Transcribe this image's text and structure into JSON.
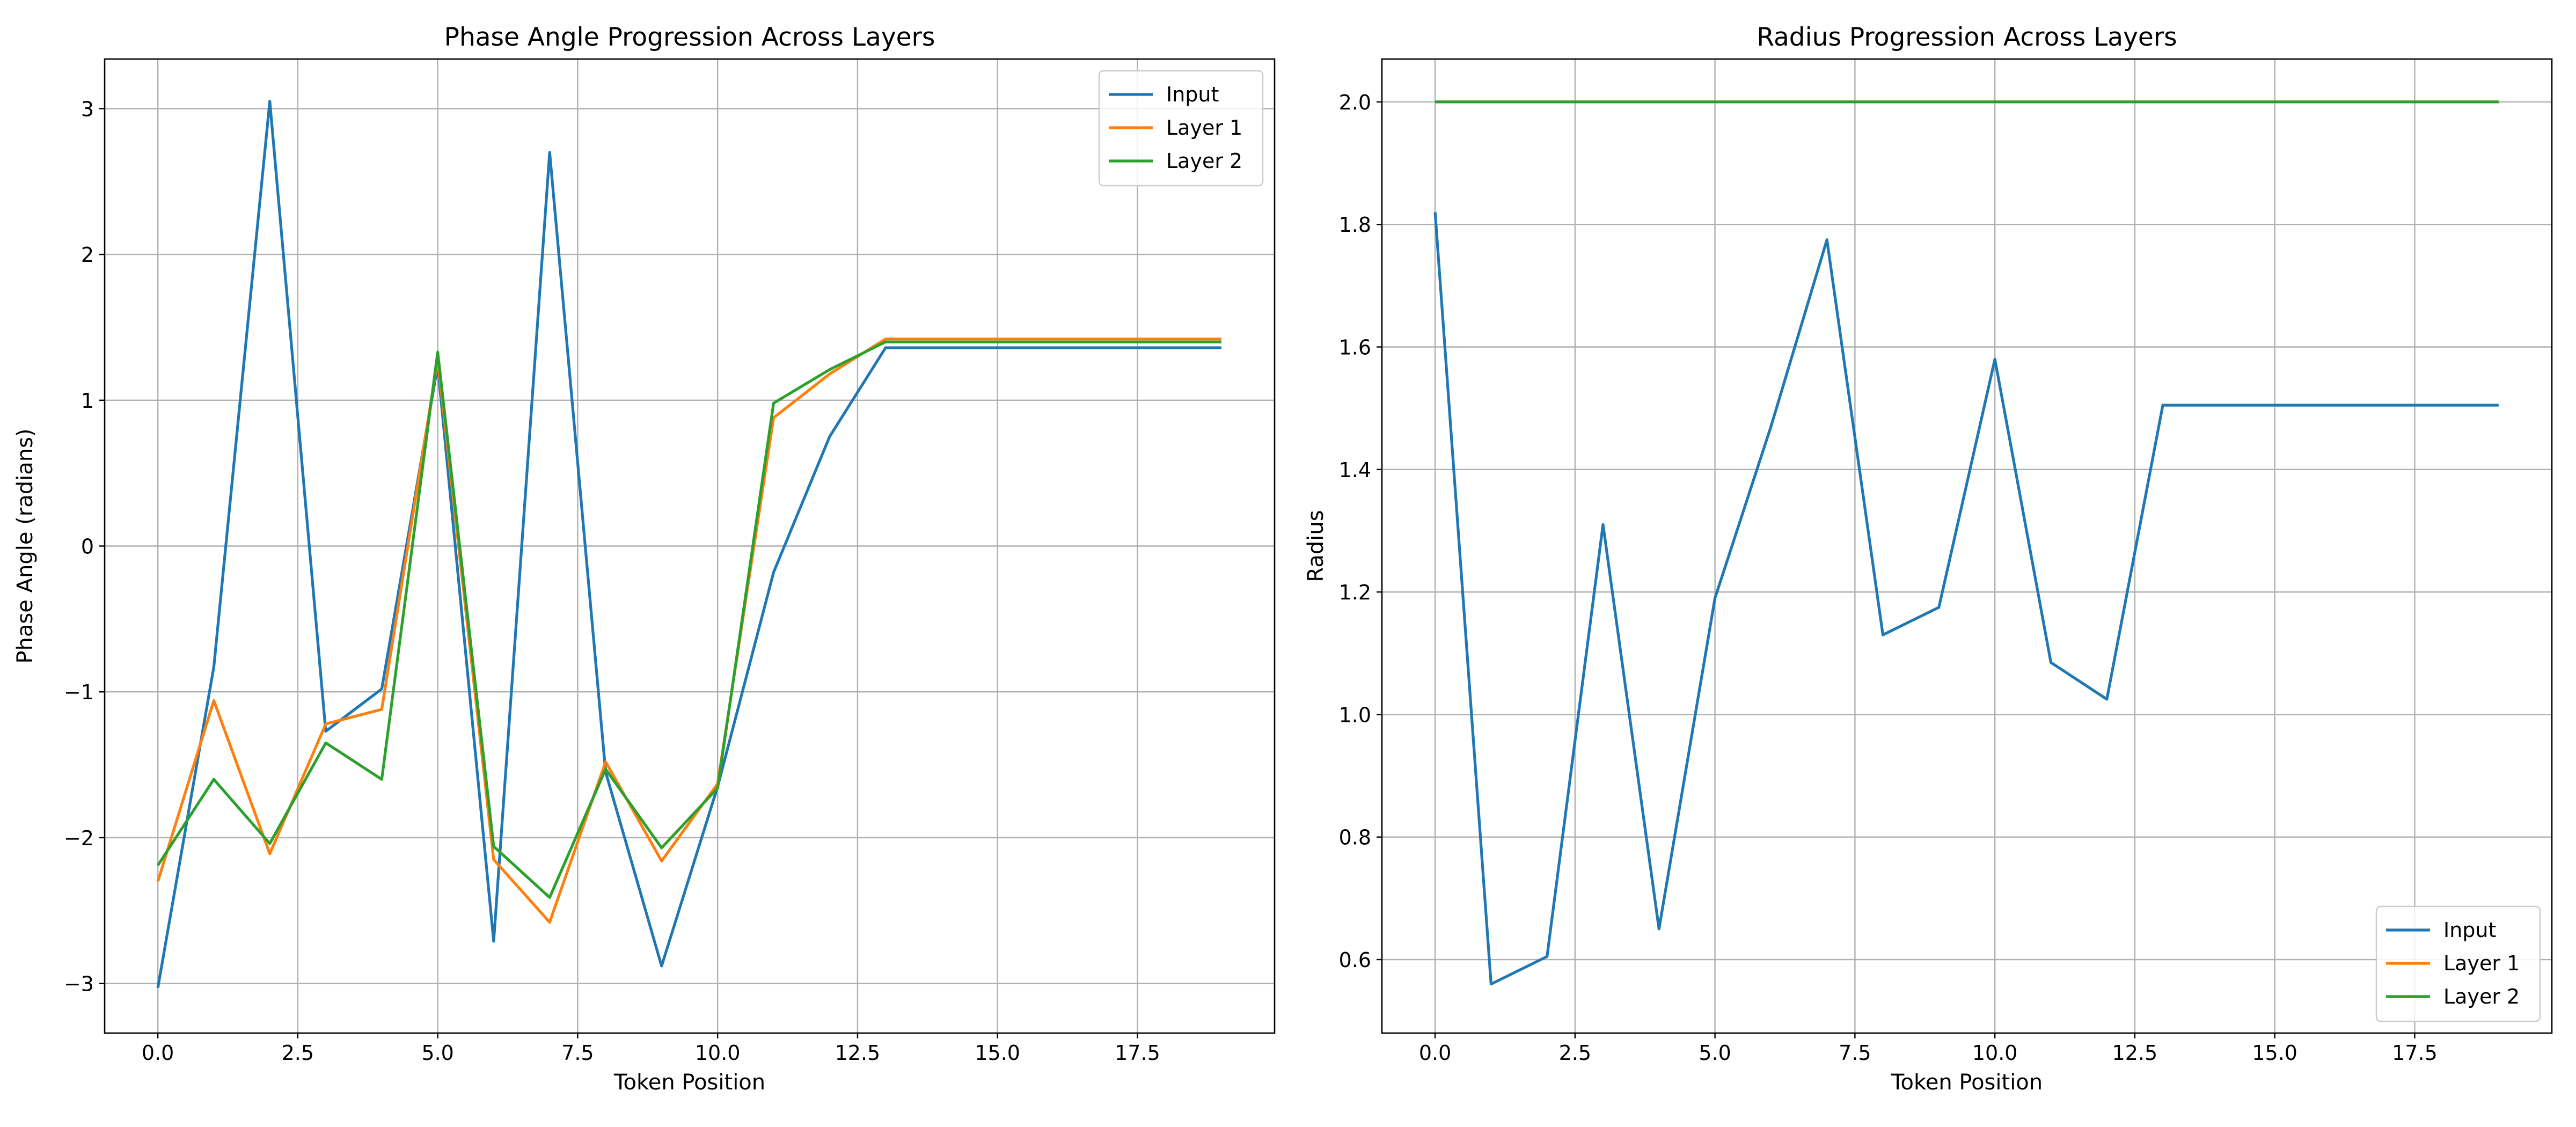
{
  "chart_data": [
    {
      "type": "line",
      "title": "Phase Angle Progression Across Layers",
      "xlabel": "Token Position",
      "ylabel": "Phase Angle (radians)",
      "xlim": [
        -0.95,
        19.95
      ],
      "ylim": [
        -3.34,
        3.34
      ],
      "xticks": [
        0.0,
        2.5,
        5.0,
        7.5,
        10.0,
        12.5,
        15.0,
        17.5
      ],
      "xtick_labels": [
        "0.0",
        "2.5",
        "5.0",
        "7.5",
        "10.0",
        "12.5",
        "15.0",
        "17.5"
      ],
      "yticks": [
        -3,
        -2,
        -1,
        0,
        1,
        2,
        3
      ],
      "ytick_labels": [
        "−3",
        "−2",
        "−1",
        "0",
        "1",
        "2",
        "3"
      ],
      "grid": true,
      "legend_position": "top-right",
      "x": [
        0,
        1,
        2,
        3,
        4,
        5,
        6,
        7,
        8,
        9,
        10,
        11,
        12,
        13,
        14,
        15,
        16,
        17,
        18,
        19
      ],
      "series": [
        {
          "name": "Input",
          "color": "#1f77b4",
          "values": [
            -3.03,
            -0.83,
            3.05,
            -1.27,
            -0.98,
            1.24,
            -2.71,
            2.7,
            -1.55,
            -2.88,
            -1.65,
            -0.18,
            0.75,
            1.36,
            1.36,
            1.36,
            1.36,
            1.36,
            1.36,
            1.36
          ]
        },
        {
          "name": "Layer 1",
          "color": "#ff7f0e",
          "values": [
            -2.3,
            -1.06,
            -2.11,
            -1.22,
            -1.12,
            1.28,
            -2.15,
            -2.58,
            -1.48,
            -2.16,
            -1.63,
            0.88,
            1.18,
            1.42,
            1.42,
            1.42,
            1.42,
            1.42,
            1.42,
            1.42
          ]
        },
        {
          "name": "Layer 2",
          "color": "#2ca02c",
          "values": [
            -2.19,
            -1.6,
            -2.04,
            -1.35,
            -1.6,
            1.33,
            -2.06,
            -2.41,
            -1.53,
            -2.07,
            -1.66,
            0.98,
            1.21,
            1.4,
            1.4,
            1.4,
            1.4,
            1.4,
            1.4,
            1.4
          ]
        }
      ]
    },
    {
      "type": "line",
      "title": "Radius Progression Across Layers",
      "xlabel": "Token Position",
      "ylabel": "Radius",
      "xlim": [
        -0.95,
        19.95
      ],
      "ylim": [
        0.48,
        2.07
      ],
      "xticks": [
        0.0,
        2.5,
        5.0,
        7.5,
        10.0,
        12.5,
        15.0,
        17.5
      ],
      "xtick_labels": [
        "0.0",
        "2.5",
        "5.0",
        "7.5",
        "10.0",
        "12.5",
        "15.0",
        "17.5"
      ],
      "yticks": [
        0.6,
        0.8,
        1.0,
        1.2,
        1.4,
        1.6,
        1.8,
        2.0
      ],
      "ytick_labels": [
        "0.6",
        "0.8",
        "1.0",
        "1.2",
        "1.4",
        "1.6",
        "1.8",
        "2.0"
      ],
      "grid": true,
      "legend_position": "bottom-right",
      "x": [
        0,
        1,
        2,
        3,
        4,
        5,
        6,
        7,
        8,
        9,
        10,
        11,
        12,
        13,
        14,
        15,
        16,
        17,
        18,
        19
      ],
      "series": [
        {
          "name": "Input",
          "color": "#1f77b4",
          "values": [
            1.82,
            0.56,
            0.605,
            1.31,
            0.65,
            1.19,
            1.47,
            1.775,
            1.13,
            1.175,
            1.58,
            1.085,
            1.025,
            1.505,
            1.505,
            1.505,
            1.505,
            1.505,
            1.505,
            1.505
          ]
        },
        {
          "name": "Layer 1",
          "color": "#ff7f0e",
          "values": [
            2.0,
            2.0,
            2.0,
            2.0,
            2.0,
            2.0,
            2.0,
            2.0,
            2.0,
            2.0,
            2.0,
            2.0,
            2.0,
            2.0,
            2.0,
            2.0,
            2.0,
            2.0,
            2.0,
            2.0
          ]
        },
        {
          "name": "Layer 2",
          "color": "#2ca02c",
          "values": [
            2.0,
            2.0,
            2.0,
            2.0,
            2.0,
            2.0,
            2.0,
            2.0,
            2.0,
            2.0,
            2.0,
            2.0,
            2.0,
            2.0,
            2.0,
            2.0,
            2.0,
            2.0,
            2.0,
            2.0
          ]
        }
      ]
    }
  ]
}
